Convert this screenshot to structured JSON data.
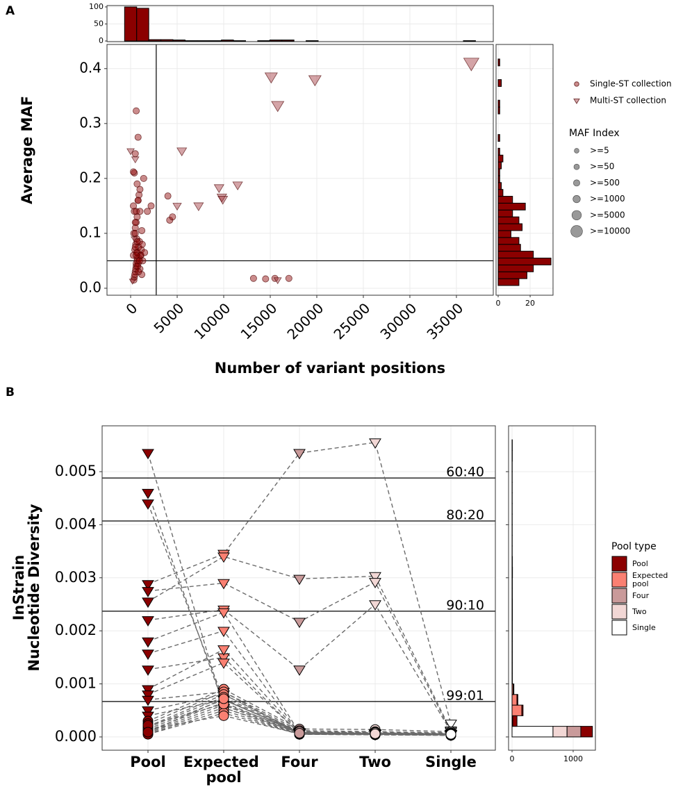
{
  "chart_data": [
    {
      "type": "scatter_marginal",
      "panel": "A",
      "x_label": "Number of variant positions",
      "y_label": "Average MAF",
      "xlim": [
        -2540,
        38960
      ],
      "ylim": [
        -0.0127,
        0.444
      ],
      "xticks": [
        0,
        5000,
        10000,
        15000,
        20000,
        25000,
        30000,
        35000
      ],
      "yticks": [
        {
          "value": 0,
          "label": "0.0"
        },
        0.1,
        0.2,
        0.3,
        0.4
      ],
      "grid": true,
      "vline": 2750,
      "hline": 0.05,
      "series": [
        {
          "name": "Single-ST collection",
          "marker": "circle",
          "color": "#8b0000",
          "x": [
            400,
            500,
            600,
            700,
            300,
            800,
            900,
            1000,
            1200,
            450,
            550,
            650,
            750,
            350,
            850,
            950,
            1100,
            1300,
            500,
            600,
            700,
            400,
            300,
            800,
            900,
            1000,
            1400,
            500,
            600,
            700,
            650,
            550,
            450,
            350,
            750,
            850,
            950,
            1050,
            1150,
            1250,
            500,
            600,
            800,
            700,
            400,
            600,
            500,
            700,
            1000,
            1800,
            2200,
            4000,
            4200,
            4500,
            13200,
            14500,
            15500,
            17000,
            600,
            800,
            500,
            300,
            1200,
            1500
          ],
          "y": [
            0.02,
            0.03,
            0.04,
            0.05,
            0.06,
            0.045,
            0.055,
            0.035,
            0.025,
            0.07,
            0.08,
            0.09,
            0.065,
            0.1,
            0.075,
            0.085,
            0.06,
            0.05,
            0.11,
            0.12,
            0.13,
            0.14,
            0.15,
            0.16,
            0.17,
            0.18,
            0.2,
            0.1,
            0.045,
            0.055,
            0.065,
            0.035,
            0.025,
            0.015,
            0.04,
            0.03,
            0.05,
            0.06,
            0.07,
            0.08,
            0.12,
            0.14,
            0.16,
            0.19,
            0.21,
            0.06,
            0.075,
            0.085,
            0.14,
            0.14,
            0.15,
            0.168,
            0.124,
            0.13,
            0.018,
            0.017,
            0.018,
            0.018,
            0.323,
            0.275,
            0.245,
            0.212,
            0.105,
            0.065
          ]
        },
        {
          "name": "Multi-ST collection",
          "marker": "triangle",
          "color": "#a0363c",
          "x": [
            36600,
            15100,
            19800,
            15800,
            5500,
            9500,
            11500,
            9800,
            9900,
            5000,
            7300,
            15800,
            0,
            500,
            200,
            400
          ],
          "y": [
            0.41,
            0.385,
            0.38,
            0.333,
            0.25,
            0.183,
            0.188,
            0.166,
            0.162,
            0.15,
            0.15,
            0.015,
            0.25,
            0.235,
            0.013,
            0.09
          ],
          "sizes": [
            10000,
            5000,
            5000,
            5000,
            1000,
            1000,
            1000,
            1000,
            1000,
            500,
            1000,
            50,
            50,
            50,
            5,
            5
          ]
        }
      ],
      "size_title": "MAF Index",
      "size_breaks": [
        {
          "value": 5,
          "label": ">=5"
        },
        {
          "value": 50,
          "label": ">=50"
        },
        {
          "value": 500,
          "label": ">=500"
        },
        {
          "value": 1000,
          "label": ">=1000"
        },
        {
          "value": 5000,
          "label": ">=5000"
        },
        {
          "value": 10000,
          "label": ">=10000"
        }
      ],
      "top_hist": {
        "type": "histogram",
        "color": "#8b0000",
        "ylim": [
          -2,
          104
        ],
        "yticks": [
          0,
          50,
          100
        ],
        "bins": [
          -650,
          650,
          1950,
          3250,
          4550,
          5850,
          7150,
          8450,
          9750,
          11050,
          12350,
          13650,
          14950,
          16250,
          17550,
          18850,
          20150,
          21450,
          22750,
          24050,
          25350,
          26650,
          27950,
          29250,
          30550,
          31850,
          33150,
          34450,
          35750,
          37050
        ],
        "counts": [
          100,
          96,
          4,
          4,
          3,
          1,
          1,
          1,
          3,
          1,
          0,
          1,
          3,
          3,
          0,
          1,
          0,
          0,
          0,
          0,
          0,
          0,
          0,
          0,
          0,
          0,
          0,
          0,
          1
        ]
      },
      "right_hist": {
        "type": "histogram",
        "color": "#8b0000",
        "xlim": [
          -1.3,
          34.3
        ],
        "xticks": [
          0,
          20
        ],
        "bins": [
          0.005,
          0.0175,
          0.03,
          0.0425,
          0.055,
          0.0675,
          0.08,
          0.0925,
          0.105,
          0.1175,
          0.13,
          0.1425,
          0.155,
          0.1675,
          0.18,
          0.1925,
          0.205,
          0.2175,
          0.23,
          0.2425,
          0.255,
          0.2675,
          0.28,
          0.2925,
          0.305,
          0.3175,
          0.33,
          0.3425,
          0.355,
          0.3675,
          0.38,
          0.3925,
          0.405,
          0.4175,
          0.43
        ],
        "counts": [
          13,
          18,
          22,
          33,
          22,
          14,
          13,
          8,
          15,
          13,
          9,
          17,
          9,
          3,
          2,
          1,
          1,
          2,
          3,
          1,
          0,
          1,
          0,
          0,
          0,
          1,
          1,
          0,
          0,
          2,
          0,
          0,
          1,
          0
        ]
      }
    },
    {
      "type": "paired_strip",
      "panel": "B",
      "y_label": [
        "InStrain",
        "Nucleotide Diversity"
      ],
      "categories": [
        "Pool",
        "Expected pool",
        "Four",
        "Two",
        "Single"
      ],
      "category_colors": [
        "#8b0000",
        "#fa8072",
        "#c99a9a",
        "#f2d7d5",
        "#ffffff"
      ],
      "legend_title": "Pool type",
      "ylim": [
        -0.00025,
        0.005864
      ],
      "yticks": [
        {
          "value": 0,
          "label": "0.000"
        },
        {
          "value": 0.001,
          "label": "0.001"
        },
        {
          "value": 0.002,
          "label": "0.002"
        },
        {
          "value": 0.003,
          "label": "0.003"
        },
        {
          "value": 0.004,
          "label": "0.004"
        },
        {
          "value": 0.005,
          "label": "0.005"
        }
      ],
      "grid": true,
      "reference_lines": [
        {
          "value": 0.00488,
          "label": "60:40"
        },
        {
          "value": 0.00407,
          "label": "80:20"
        },
        {
          "value": 0.00237,
          "label": "90:10"
        },
        {
          "value": 0.000668,
          "label": "99:01"
        }
      ],
      "samples": [
        {
          "marker": "triangle",
          "values": [
            0.00535,
            0.00055,
            8e-05,
            6e-05,
            5e-05
          ]
        },
        {
          "marker": "triangle",
          "values": [
            0.0046,
            0.0006,
            7e-05,
            5e-05,
            4e-05
          ]
        },
        {
          "marker": "triangle",
          "values": [
            0.0044,
            0.0007,
            9e-05,
            6e-05,
            5e-05
          ]
        },
        {
          "marker": "triangle",
          "values": [
            0.00288,
            0.00345,
            0.00535,
            0.00555,
            0.00025
          ]
        },
        {
          "marker": "triangle",
          "values": [
            0.00255,
            0.0034,
            0.00298,
            0.00303,
            0.00012
          ]
        },
        {
          "marker": "triangle",
          "values": [
            0.00275,
            0.0029,
            0.00217,
            0.00292,
            0.0001
          ]
        },
        {
          "marker": "triangle",
          "values": [
            0.0022,
            0.0024,
            0.00127,
            0.0025,
            0.0001
          ]
        },
        {
          "marker": "triangle",
          "values": [
            0.0018,
            0.00235,
            8e-05,
            6e-05,
            5e-05
          ]
        },
        {
          "marker": "triangle",
          "values": [
            0.00157,
            0.002,
            7e-05,
            5e-05,
            4e-05
          ]
        },
        {
          "marker": "triangle",
          "values": [
            0.00127,
            0.0015,
            6e-05,
            5e-05,
            4e-05
          ]
        },
        {
          "marker": "triangle",
          "values": [
            0.0009,
            0.00165,
            8e-05,
            6e-05,
            5e-05
          ]
        },
        {
          "marker": "triangle",
          "values": [
            0.0008,
            0.0014,
            7e-05,
            6e-05,
            4e-05
          ]
        },
        {
          "marker": "triangle",
          "values": [
            0.0007,
            0.00085,
            6e-05,
            5e-05,
            4e-05
          ]
        },
        {
          "marker": "triangle",
          "values": [
            0.0005,
            0.0008,
            8e-05,
            6e-05,
            5e-05
          ]
        },
        {
          "marker": "triangle",
          "values": [
            0.0004,
            0.0007,
            9e-05,
            7e-05,
            6e-05
          ]
        },
        {
          "marker": "circle",
          "values": [
            0.0003,
            0.0009,
            0.00015,
            0.00014,
            0.0001
          ]
        },
        {
          "marker": "circle",
          "values": [
            0.00025,
            0.00085,
            0.00012,
            0.0001,
            8e-05
          ]
        },
        {
          "marker": "circle",
          "values": [
            0.0002,
            0.0008,
            0.0001,
            9e-05,
            7e-05
          ]
        },
        {
          "marker": "circle",
          "values": [
            0.00018,
            0.00075,
            9e-05,
            8e-05,
            6e-05
          ]
        },
        {
          "marker": "circle",
          "values": [
            0.00015,
            0.0007,
            8e-05,
            7e-05,
            6e-05
          ]
        },
        {
          "marker": "circle",
          "values": [
            0.00012,
            0.00065,
            7e-05,
            6e-05,
            5e-05
          ]
        },
        {
          "marker": "circle",
          "values": [
            0.0001,
            0.0006,
            6e-05,
            5e-05,
            4e-05
          ]
        },
        {
          "marker": "circle",
          "values": [
            8e-05,
            0.00055,
            5e-05,
            5e-05,
            4e-05
          ]
        },
        {
          "marker": "circle",
          "values": [
            6e-05,
            0.0005,
            5e-05,
            4e-05,
            3e-05
          ]
        },
        {
          "marker": "circle",
          "values": [
            5e-05,
            0.00045,
            5e-05,
            4e-05,
            3e-05
          ]
        },
        {
          "marker": "circle",
          "values": [
            0.00014,
            0.0004,
            6e-05,
            5e-05,
            4e-05
          ]
        },
        {
          "marker": "circle",
          "values": [
            0.00022,
            0.00062,
            0.0001,
            8e-05,
            5e-05
          ]
        },
        {
          "marker": "circle",
          "values": [
            9e-05,
            0.00072,
            7e-05,
            6e-05,
            5e-05
          ]
        }
      ],
      "hist": {
        "type": "stacked_histogram",
        "xlim": [
          -57,
          1364
        ],
        "xticks": [
          0,
          1000
        ],
        "bins": [
          0,
          0.0002,
          0.0004,
          0.0006,
          0.0008,
          0.001,
          0.0012,
          0.0014,
          0.0016,
          0.0018,
          0.002,
          0.0022,
          0.0024,
          0.0026,
          0.0028,
          0.003,
          0.0032,
          0.0034,
          0.0036,
          0.0038,
          0.004,
          0.0042,
          0.0044,
          0.0046,
          0.0048,
          0.005,
          0.0052,
          0.0054,
          0.0056
        ],
        "series": [
          {
            "values": [
              190,
              70,
              20,
              15,
              10,
              3,
              3,
              3,
              3,
              3,
              3,
              3,
              3,
              3,
              3,
              3,
              3,
              3,
              3,
              3,
              3,
              3,
              3,
              3,
              3,
              3,
              3,
              3
            ]
          },
          {
            "values": [
              0,
              10,
              160,
              80,
              20,
              2,
              2,
              2,
              2,
              2,
              2,
              2,
              2,
              2,
              2,
              2,
              2,
              0,
              0,
              0,
              0,
              0,
              0,
              0,
              0,
              0,
              0,
              0
            ]
          },
          {
            "values": [
              225,
              0,
              0,
              0,
              0,
              0,
              0,
              0,
              0,
              0,
              0,
              1,
              0,
              0,
              0,
              1,
              0,
              0,
              0,
              0,
              0,
              0,
              0,
              0,
              0,
              0,
              1,
              0
            ]
          },
          {
            "values": [
              230,
              0,
              0,
              0,
              0,
              0,
              0,
              0,
              0,
              0,
              0,
              0,
              1,
              0,
              0,
              1,
              0,
              0,
              0,
              0,
              0,
              0,
              0,
              0,
              0,
              0,
              0,
              1
            ]
          },
          {
            "values": [
              670,
              1,
              0,
              0,
              0,
              0,
              0,
              0,
              0,
              0,
              0,
              0,
              0,
              0,
              0,
              0,
              0,
              0,
              0,
              0,
              0,
              0,
              0,
              0,
              0,
              0,
              0,
              0
            ]
          }
        ]
      }
    }
  ]
}
